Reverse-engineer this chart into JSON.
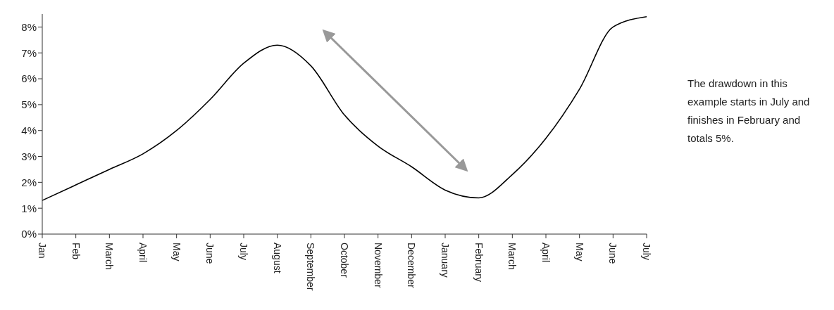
{
  "chart_data": {
    "type": "line",
    "categories": [
      "Jan",
      "Feb",
      "March",
      "April",
      "May",
      "June",
      "July",
      "August",
      "September",
      "October",
      "November",
      "December",
      "January",
      "February",
      "March",
      "April",
      "May",
      "June",
      "July"
    ],
    "series": [
      {
        "color": "#000000",
        "values": [
          1.3,
          1.9,
          2.5,
          3.1,
          4.0,
          5.2,
          6.6,
          7.3,
          6.5,
          4.6,
          3.4,
          2.6,
          1.7,
          1.4,
          2.3,
          3.7,
          5.6,
          8.0,
          8.4
        ]
      }
    ],
    "ylim": [
      0,
      8.5
    ],
    "yticks": [
      {
        "value": 0,
        "label": "0%"
      },
      {
        "value": 1,
        "label": "1%"
      },
      {
        "value": 2,
        "label": "2%"
      },
      {
        "value": 3,
        "label": "3%"
      },
      {
        "value": 4,
        "label": "4%"
      },
      {
        "value": 5,
        "label": "5%"
      },
      {
        "value": 6,
        "label": "6%"
      },
      {
        "value": 7,
        "label": "7%"
      },
      {
        "value": 8,
        "label": "8%"
      }
    ],
    "grid": false,
    "legend": false,
    "marker": "none",
    "line_style": "solid",
    "annotations": [
      "The drawdown in this example starts in July and finishes in February and totals 5%."
    ]
  }
}
